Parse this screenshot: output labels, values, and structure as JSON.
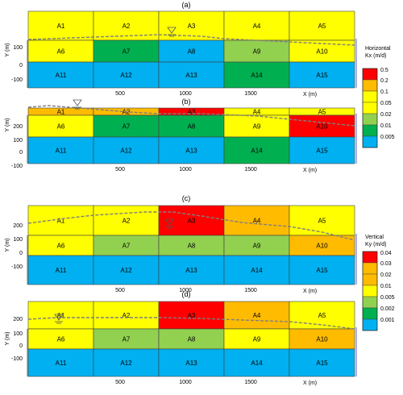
{
  "colors": {
    "red": "#ff0000",
    "orange": "#ffbb00",
    "yellow": "#ffff00",
    "lightgreen": "#92d050",
    "darkgreen": "#00b050",
    "blue": "#00b0f0",
    "water_table": "#7f7f7f",
    "grid_line": "#404040"
  },
  "axes": {
    "y_label": "Y (m)",
    "x_label": "X (m)",
    "y_ticks_a": [
      "100",
      "0",
      "-100"
    ],
    "y_ticks": [
      "200",
      "100",
      "0",
      "-100"
    ],
    "x_ticks": [
      "500",
      "1000",
      "1500"
    ]
  },
  "panels": [
    {
      "label": "(a)",
      "zones": [
        {
          "name": "A1",
          "color": "yellow"
        },
        {
          "name": "A2",
          "color": "yellow"
        },
        {
          "name": "A3",
          "color": "yellow"
        },
        {
          "name": "A4",
          "color": "yellow"
        },
        {
          "name": "A5",
          "color": "yellow"
        },
        {
          "name": "A6",
          "color": "yellow"
        },
        {
          "name": "A7",
          "color": "darkgreen"
        },
        {
          "name": "A8",
          "color": "blue"
        },
        {
          "name": "A9",
          "color": "lightgreen"
        },
        {
          "name": "A10",
          "color": "yellow"
        },
        {
          "name": "A11",
          "color": "blue"
        },
        {
          "name": "A12",
          "color": "blue"
        },
        {
          "name": "A13",
          "color": "blue"
        },
        {
          "name": "A14",
          "color": "darkgreen"
        },
        {
          "name": "A15",
          "color": "blue"
        }
      ]
    },
    {
      "label": "(b)",
      "zones": [
        {
          "name": "A1",
          "color": "orange"
        },
        {
          "name": "A2",
          "color": "orange"
        },
        {
          "name": "A3",
          "color": "red"
        },
        {
          "name": "A4",
          "color": "yellow"
        },
        {
          "name": "A5",
          "color": "yellow"
        },
        {
          "name": "A6",
          "color": "yellow"
        },
        {
          "name": "A7",
          "color": "darkgreen"
        },
        {
          "name": "A8",
          "color": "darkgreen"
        },
        {
          "name": "A9",
          "color": "yellow"
        },
        {
          "name": "A10",
          "color": "red"
        },
        {
          "name": "A11",
          "color": "blue"
        },
        {
          "name": "A12",
          "color": "blue"
        },
        {
          "name": "A13",
          "color": "blue"
        },
        {
          "name": "A14",
          "color": "darkgreen"
        },
        {
          "name": "A15",
          "color": "blue"
        }
      ]
    },
    {
      "label": "(c)",
      "zones": [
        {
          "name": "A1",
          "color": "yellow"
        },
        {
          "name": "A2",
          "color": "yellow"
        },
        {
          "name": "A3",
          "color": "red"
        },
        {
          "name": "A4",
          "color": "orange"
        },
        {
          "name": "A5",
          "color": "yellow"
        },
        {
          "name": "A6",
          "color": "yellow"
        },
        {
          "name": "A7",
          "color": "lightgreen"
        },
        {
          "name": "A8",
          "color": "lightgreen"
        },
        {
          "name": "A9",
          "color": "lightgreen"
        },
        {
          "name": "A10",
          "color": "orange"
        },
        {
          "name": "A11",
          "color": "blue"
        },
        {
          "name": "A12",
          "color": "blue"
        },
        {
          "name": "A13",
          "color": "blue"
        },
        {
          "name": "A14",
          "color": "blue"
        },
        {
          "name": "A15",
          "color": "blue"
        }
      ]
    },
    {
      "label": "(d)",
      "zones": [
        {
          "name": "A1",
          "color": "yellow"
        },
        {
          "name": "A2",
          "color": "yellow"
        },
        {
          "name": "A3",
          "color": "red"
        },
        {
          "name": "A4",
          "color": "orange"
        },
        {
          "name": "A5",
          "color": "yellow"
        },
        {
          "name": "A6",
          "color": "yellow"
        },
        {
          "name": "A7",
          "color": "lightgreen"
        },
        {
          "name": "A8",
          "color": "lightgreen"
        },
        {
          "name": "A9",
          "color": "yellow"
        },
        {
          "name": "A10",
          "color": "orange"
        },
        {
          "name": "A11",
          "color": "blue"
        },
        {
          "name": "A12",
          "color": "blue"
        },
        {
          "name": "A13",
          "color": "blue"
        },
        {
          "name": "A14",
          "color": "blue"
        },
        {
          "name": "A15",
          "color": "blue"
        }
      ]
    }
  ],
  "legends": [
    {
      "title": "Horizontal",
      "subtitle": "Kx (m/d)",
      "labels": [
        "0.5",
        "0.2",
        "0.1",
        "0.05",
        "0.02",
        "0.01",
        "0.005"
      ],
      "colors": [
        "red",
        "orange",
        "yellow",
        "yellow",
        "lightgreen",
        "darkgreen",
        "blue"
      ]
    },
    {
      "title": "Vertical",
      "subtitle": "Ky (m/d)",
      "labels": [
        "0.04",
        "0.03",
        "0.02",
        "0.01",
        "0.005",
        "0.002",
        "0.001"
      ],
      "colors": [
        "red",
        "orange",
        "orange",
        "yellow",
        "lightgreen",
        "darkgreen",
        "blue"
      ]
    }
  ]
}
